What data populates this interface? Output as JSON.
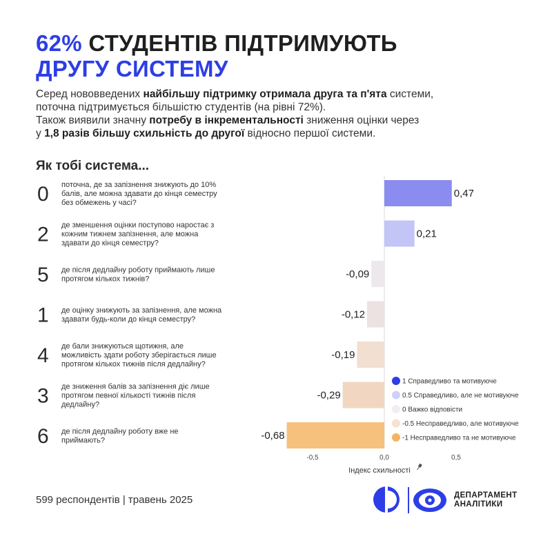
{
  "header": {
    "title_highlight": "62%",
    "title_rest": " СТУДЕНТІВ ПІДТРИМУЮТЬ",
    "title_line2": "ДРУГУ СИСТЕМУ"
  },
  "intro": {
    "p1": [
      "Серед нововведених ",
      "найбільшу підтримку отримала друга та п'ята",
      " системи,"
    ],
    "p2": "поточна підтримується більшістю студентів (на рівні 72%).",
    "p3": [
      "Також виявили значну ",
      "потребу в інкрементальності",
      " зниження оцінки через"
    ],
    "p4": [
      "у ",
      "1,8 разів більшу схильність до другої",
      " відносно першої системи."
    ]
  },
  "question": "Як тобі система...",
  "chart_data": {
    "type": "bar",
    "orientation": "horizontal",
    "categories": [
      "0",
      "2",
      "5",
      "1",
      "4",
      "3",
      "6"
    ],
    "descriptions": [
      [
        "поточна, де за запізнення знижують до 10%",
        "балів, але можна здавати до кінця семестру",
        "без обмежень у часі?"
      ],
      [
        "де зменшення оцінки поступово наростає з",
        "кожним тижнем запізнення, але можна",
        "здавати до кінця семестру?"
      ],
      [
        "де після дедлайну роботу приймають лише",
        "протягом кількох тижнів?"
      ],
      [
        "де оцінку знижують за запізнення, але можна",
        "здавати будь-коли до кінця семестру?"
      ],
      [
        "де бали знижуються щотижня, але",
        "можливість здати роботу зберігається лише",
        "протягом кількох тижнів після дедлайну?"
      ],
      [
        "де зниження балів за запізнення діє лише",
        "протягом певної кількості тижнів після",
        "дедлайну?"
      ],
      [
        "де після дедлайну роботу вже не",
        "приймають?"
      ]
    ],
    "values": [
      0.47,
      0.21,
      -0.09,
      -0.12,
      -0.19,
      -0.29,
      -0.68
    ],
    "value_labels": [
      "0,47",
      "0,21",
      "-0,09",
      "-0,12",
      "-0,19",
      "-0,29",
      "-0,68"
    ],
    "bar_colors": [
      "#8b8cf0",
      "#c3c5f7",
      "#ece8ec",
      "#ece2e2",
      "#f1dfd2",
      "#f1d7c1",
      "#f5c17d"
    ],
    "xlim": [
      -0.7,
      0.7
    ],
    "ticks": [
      -0.5,
      0.0,
      0.5
    ],
    "tick_labels": [
      "-0,5",
      "0,0",
      "0,5"
    ],
    "xlabel": "Індекс схильності",
    "legend": {
      "placement": "right",
      "items": [
        {
          "label": "1 Справедливо та мотивуюче",
          "color": "#2d3ee6"
        },
        {
          "label": "0.5 Справедливо, але не мотивуюче",
          "color": "#cfd1f7"
        },
        {
          "label": "0 Важко відповісти",
          "color": "#f0eef0"
        },
        {
          "label": "-0.5 Несправедливо, але мотивуюче",
          "color": "#f6e2d2"
        },
        {
          "label": "-1 Несправедливо та не мотивуюче",
          "color": "#f3b461"
        }
      ]
    }
  },
  "footer": {
    "respondents": "599 респондентів | травень 2025"
  },
  "logo": {
    "line1": "ДЕПАРТАМЕНТ",
    "line2": "АНАЛІТИКИ",
    "accent": "#2d3ee6"
  }
}
